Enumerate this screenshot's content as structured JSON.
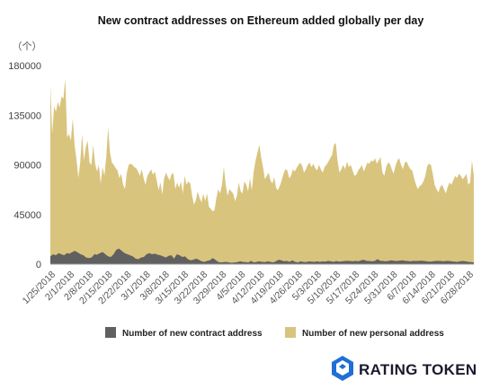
{
  "chart_data": {
    "type": "area",
    "title": "New contract addresses on Ethereum added globally per day",
    "unit_label": "（个）",
    "ylim": [
      0,
      180000
    ],
    "y_ticks": [
      0,
      45000,
      90000,
      135000,
      180000
    ],
    "y_tick_labels": [
      "0",
      "45000",
      "90000",
      "135000",
      "180000"
    ],
    "x_range": [
      "2018-01-25",
      "2018-06-28"
    ],
    "x_tick_labels": [
      "1/25/2018",
      "2/1/2018",
      "2/8/2018",
      "2/15/2018",
      "2/22/2018",
      "3/1/2018",
      "3/8/2018",
      "3/15/2018",
      "3/22/2018",
      "3/29/2018",
      "4/5/2018",
      "4/12/2018",
      "4/19/2018",
      "4/26/2018",
      "5/3/2018",
      "5/10/2018",
      "5/17/2018",
      "5/24/2018",
      "5/31/2018",
      "6/7/2018",
      "6/14/2018",
      "6/21/2018",
      "6/28/2018"
    ],
    "stacked": true,
    "grid": false,
    "legend_position": "bottom",
    "series": [
      {
        "name": "Number of new contract address",
        "color": "#606060",
        "values": [
          7000,
          9000,
          8000,
          10000,
          9000,
          8000,
          10000,
          9500,
          11000,
          12000,
          10500,
          9000,
          8000,
          6000,
          5500,
          6000,
          9000,
          8500,
          10000,
          11000,
          9000,
          7000,
          6500,
          9000,
          13000,
          14000,
          12000,
          10000,
          9000,
          8000,
          7000,
          5000,
          4500,
          6000,
          6500,
          9000,
          10000,
          9000,
          9500,
          8500,
          8000,
          7000,
          6000,
          7500,
          8000,
          5000,
          9000,
          8000,
          6500,
          7000,
          4500,
          3500,
          4000,
          5000,
          4000,
          2500,
          2000,
          3000,
          3500,
          5500,
          4000,
          2000,
          1500,
          1800,
          2000,
          1500,
          1200,
          1500,
          1800,
          2500,
          2000,
          1800,
          1500,
          3000,
          1500,
          2000,
          2500,
          2000,
          1800,
          2500,
          2000,
          1500,
          2500,
          4000,
          3500,
          2500,
          3000,
          2000,
          3500,
          2000,
          1500,
          2500,
          2000,
          1800,
          2500,
          2200,
          2000,
          2500,
          2000,
          2500,
          2200,
          3000,
          2500,
          2000,
          2800,
          2200,
          2500,
          2800,
          3000,
          2800,
          2500,
          3000,
          2500,
          3500,
          4000,
          3000,
          2800,
          2500,
          3000,
          4500,
          3000,
          2800,
          2500,
          3000,
          3500,
          3000,
          2800,
          3200,
          3500,
          3000,
          2800,
          2500,
          3000,
          2800,
          3000,
          3200,
          2800,
          2500,
          2200,
          2500,
          2800,
          3000,
          2800,
          2500,
          3000,
          2800,
          2500,
          2200,
          2000,
          2500,
          2800,
          2500,
          2000,
          1800,
          1500
        ],
        "values_note": "",
        "total_values": [
          163000,
          118000,
          143000,
          138000,
          147000,
          142000,
          152000,
          150000,
          168000,
          115000,
          118000,
          112000,
          132000,
          108000,
          95000,
          78000,
          92000,
          118000,
          94000,
          106000,
          112000,
          92000,
          90000,
          108000,
          91000,
          84000,
          90000,
          73000,
          88000,
          80000,
          98000,
          124000,
          101000,
          92000,
          90000,
          87000,
          85000,
          78000,
          82000,
          72000,
          68000,
          83000,
          90000,
          91000,
          90000,
          88000,
          87000,
          84000,
          80000,
          86000,
          78000,
          72000,
          80000,
          83000,
          86000,
          81000,
          84000,
          76000,
          67000,
          74000,
          63000,
          78000,
          83000,
          79000,
          76000,
          82000,
          82000,
          68000,
          74000,
          69000,
          75000,
          64000,
          80000,
          72000,
          75000,
          73000,
          62000,
          54000,
          58000,
          66000,
          60000,
          56000,
          64000,
          57000,
          64000,
          52000,
          50000,
          48000,
          49000,
          60000,
          68000,
          64000,
          72000,
          88000,
          72000,
          62000,
          68000,
          66000,
          64000,
          57000,
          62000,
          74000,
          66000,
          64000,
          75000,
          72000,
          66000,
          78000,
          67000,
          84000,
          94000,
          101000,
          108000,
          97000,
          88000,
          77000,
          80000,
          83000,
          76000,
          73000,
          79000,
          69000,
          67000,
          71000,
          76000,
          82000,
          86000,
          85000,
          78000,
          80000,
          86000,
          84000,
          87000,
          90000,
          92000,
          89000,
          83000,
          86000,
          90000,
          92000,
          88000,
          91000,
          87000,
          85000,
          90000,
          86000,
          83000,
          88000,
          90000,
          93000,
          96000,
          99000,
          108000,
          110000,
          93000,
          83000,
          86000,
          90000,
          86000,
          93000,
          88000,
          90000,
          85000,
          80000,
          81000,
          85000,
          87000,
          90000,
          84000,
          88000,
          92000,
          91000,
          94000,
          93000,
          96000,
          91000,
          94000,
          97000,
          83000,
          80000,
          88000,
          92000,
          91000,
          86000,
          82000,
          89000,
          94000,
          96000,
          90000,
          86000,
          92000,
          93000,
          89000,
          86000,
          85000,
          78000,
          72000,
          68000,
          71000,
          72000,
          75000,
          80000,
          89000,
          91000,
          90000,
          82000,
          72000,
          68000,
          65000,
          70000,
          72000,
          68000,
          64000,
          70000,
          74000,
          72000,
          76000,
          80000,
          78000,
          82000,
          80000,
          77000,
          79000,
          82000,
          72000,
          74000,
          94000,
          80000
        ]
      },
      {
        "name": "Number of new personal address",
        "color": "#d9c47e"
      }
    ]
  },
  "logo": {
    "text": "RATING TOKEN",
    "icon": "rating-token-logo-icon",
    "color": "#1f6fd6"
  }
}
